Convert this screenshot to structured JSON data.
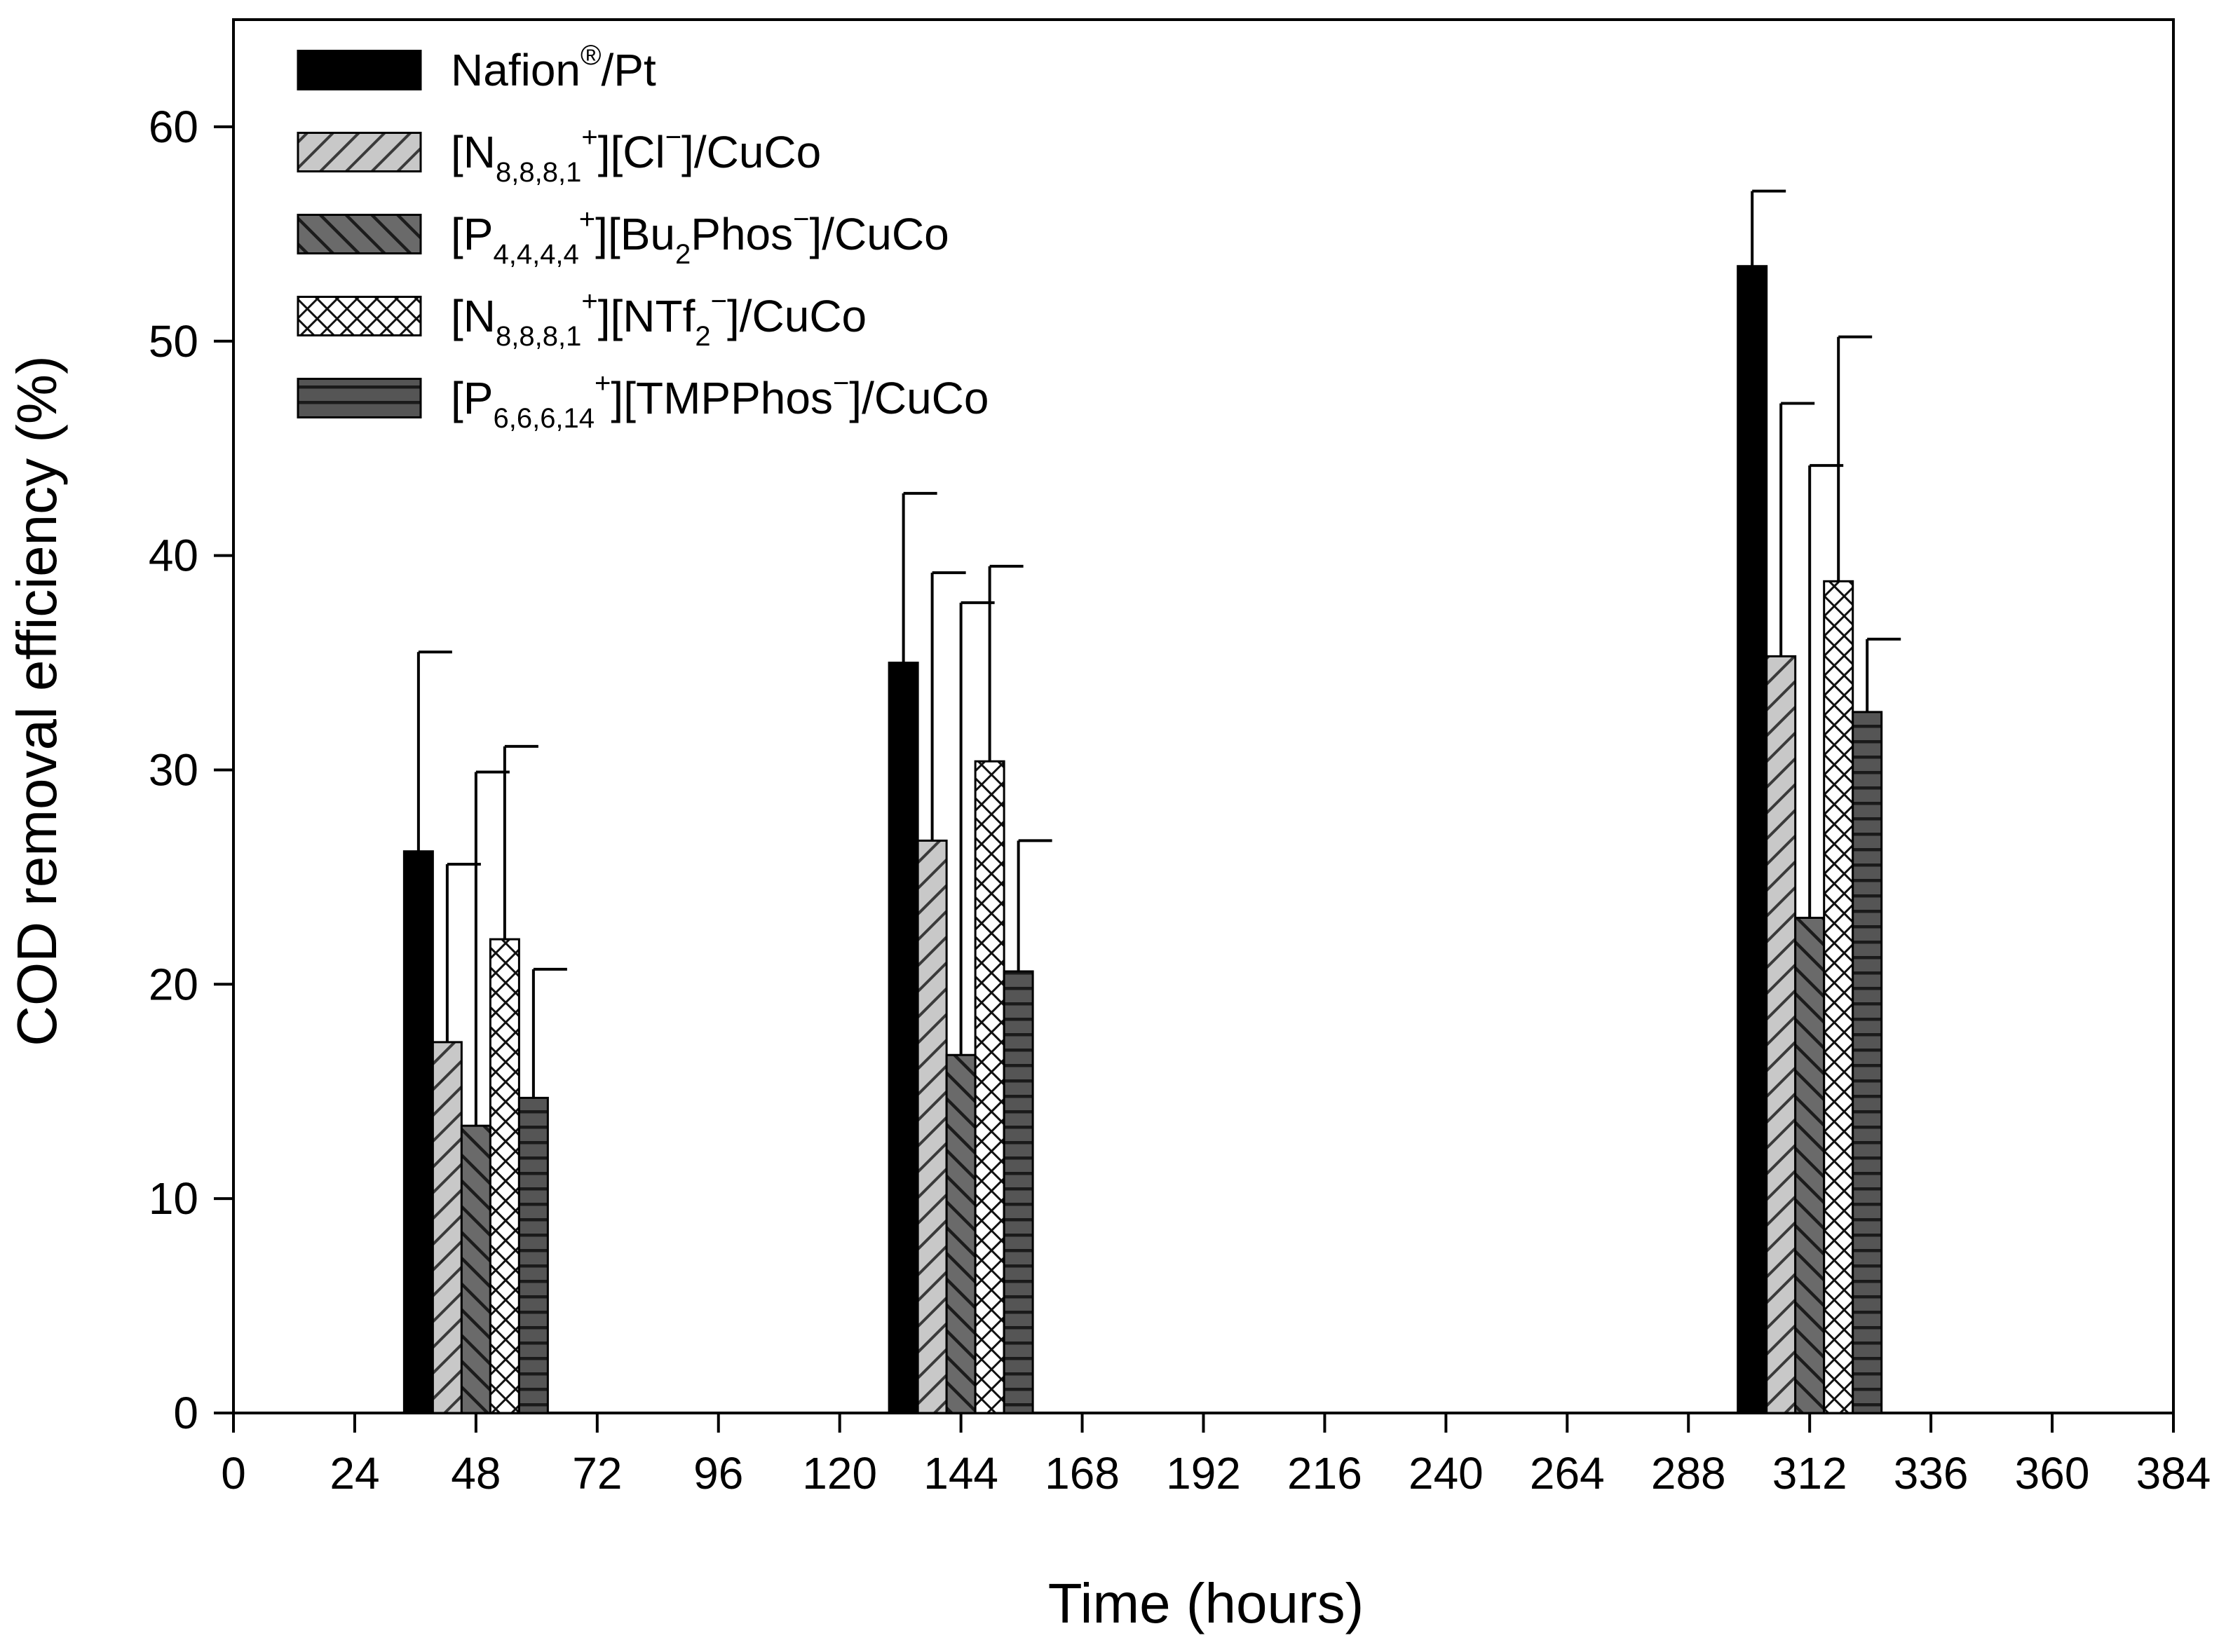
{
  "chart_data": {
    "type": "bar",
    "xlabel": "Time (hours)",
    "ylabel": "COD removal efficiency (%)",
    "xlim": [
      0,
      384
    ],
    "ylim": [
      0,
      65
    ],
    "x_ticks": [
      0,
      24,
      48,
      72,
      96,
      120,
      144,
      168,
      192,
      216,
      240,
      264,
      288,
      312,
      336,
      360,
      384
    ],
    "y_ticks": [
      0,
      10,
      20,
      30,
      40,
      50,
      60
    ],
    "x_tick_labels": [
      "0",
      "24",
      "48",
      "72",
      "96",
      "120",
      "144",
      "168",
      "192",
      "216",
      "240",
      "264",
      "288",
      "312",
      "336",
      "360",
      "384"
    ],
    "y_tick_labels": [
      "0",
      "10",
      "20",
      "30",
      "40",
      "50",
      "60"
    ],
    "group_centers": [
      48,
      144,
      312
    ],
    "legend_position": "top-left",
    "series": [
      {
        "name": "Nafion®/Pt",
        "label_parts": [
          {
            "t": "Nafion"
          },
          {
            "t": "®",
            "s": "sup"
          },
          {
            "t": "/Pt"
          }
        ],
        "pattern": "solid",
        "values": [
          26.2,
          35.0,
          53.5
        ],
        "errors": [
          9.3,
          7.9,
          3.5
        ]
      },
      {
        "name": "[N8,8,8,1+][Cl−]/CuCo",
        "label_parts": [
          {
            "t": "[N"
          },
          {
            "t": "8,8,8,1",
            "s": "sub"
          },
          {
            "t": "+",
            "s": "sup"
          },
          {
            "t": "][Cl"
          },
          {
            "t": "−",
            "s": "sup"
          },
          {
            "t": "]/CuCo"
          }
        ],
        "pattern": "hatch-light",
        "values": [
          17.3,
          26.7,
          35.3
        ],
        "errors": [
          8.3,
          12.5,
          11.8
        ]
      },
      {
        "name": "[P4,4,4,4+][Bu2Phos−]/CuCo",
        "label_parts": [
          {
            "t": "[P"
          },
          {
            "t": "4,4,4,4",
            "s": "sub"
          },
          {
            "t": "+",
            "s": "sup"
          },
          {
            "t": "][Bu"
          },
          {
            "t": "2",
            "s": "sub"
          },
          {
            "t": "Phos"
          },
          {
            "t": "−",
            "s": "sup"
          },
          {
            "t": "]/CuCo"
          }
        ],
        "pattern": "hatch-dark",
        "values": [
          13.4,
          16.7,
          23.1
        ],
        "errors": [
          16.5,
          21.1,
          21.1
        ]
      },
      {
        "name": "[N8,8,8,1+][NTf2−]/CuCo",
        "label_parts": [
          {
            "t": "[N"
          },
          {
            "t": "8,8,8,1",
            "s": "sub"
          },
          {
            "t": "+",
            "s": "sup"
          },
          {
            "t": "][NTf"
          },
          {
            "t": "2",
            "s": "sub"
          },
          {
            "t": "−",
            "s": "sup"
          },
          {
            "t": "]/CuCo"
          }
        ],
        "pattern": "crosshatch",
        "values": [
          22.1,
          30.4,
          38.8
        ],
        "errors": [
          9.0,
          9.1,
          11.4
        ]
      },
      {
        "name": "[P6,6,6,14+][TMPPhos−]/CuCo",
        "label_parts": [
          {
            "t": "[P"
          },
          {
            "t": "6,6,6,14",
            "s": "sub"
          },
          {
            "t": "+",
            "s": "sup"
          },
          {
            "t": "][TMPPhos"
          },
          {
            "t": "−",
            "s": "sup"
          },
          {
            "t": "]/CuCo"
          }
        ],
        "pattern": "horizontal",
        "values": [
          14.7,
          20.6,
          32.7
        ],
        "errors": [
          6.0,
          6.1,
          3.4
        ]
      }
    ]
  }
}
